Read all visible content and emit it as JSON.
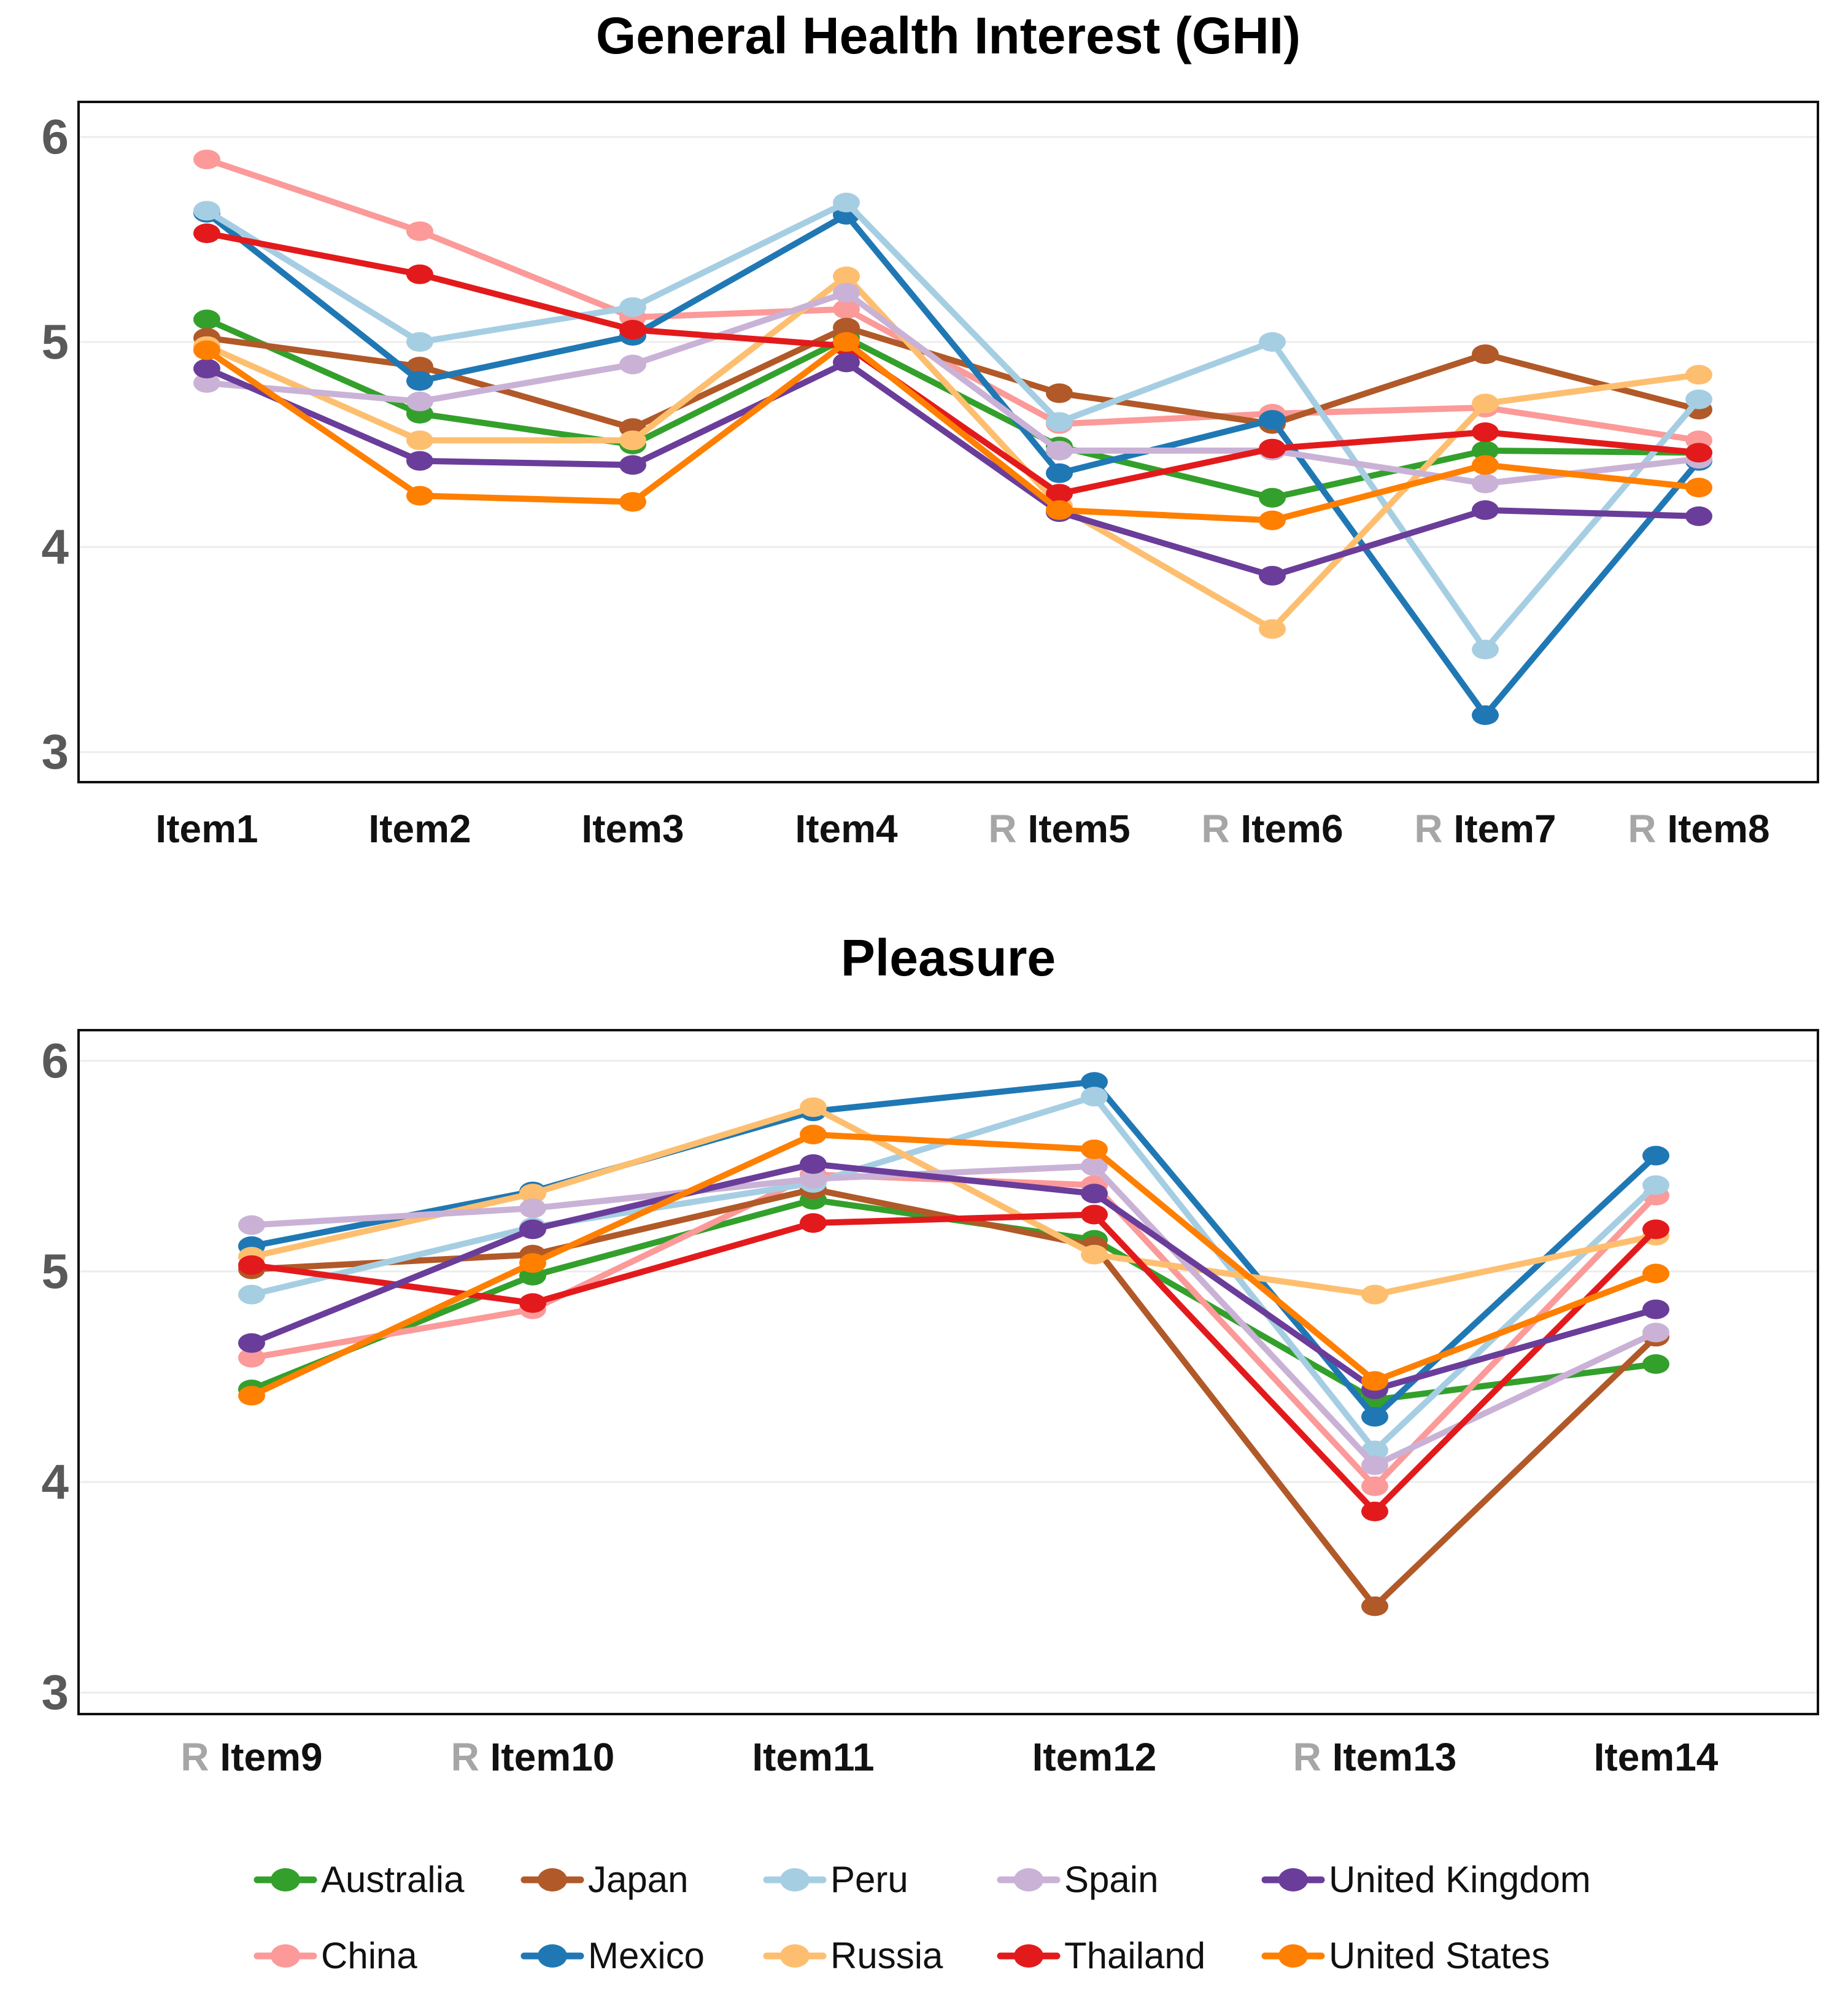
{
  "figure": {
    "reversed_prefix": "R",
    "colors": {
      "Australia": "#33a02c",
      "China": "#fb9a99",
      "Japan": "#b15928",
      "Mexico": "#1f78b4",
      "Peru": "#a6cee3",
      "Russia": "#fdbf6f",
      "Spain": "#cab2d6",
      "Thailand": "#e31a1c",
      "United Kingdom": "#6a3d9a",
      "United States": "#ff7f00"
    },
    "legend": {
      "columns": [
        [
          "Australia",
          "China"
        ],
        [
          "Japan",
          "Mexico"
        ],
        [
          "Peru",
          "Russia"
        ],
        [
          "Spain",
          "Thailand"
        ],
        [
          "United Kingdom",
          "United States"
        ]
      ]
    }
  },
  "chart_data": [
    {
      "type": "line",
      "title": "General Health Interest (GHI)",
      "ylim": [
        2.86,
        6.16
      ],
      "yticks": [
        6,
        5,
        4,
        3
      ],
      "grid": true,
      "legend_position": "bottom",
      "categories": [
        {
          "label": "Item1",
          "reversed": false
        },
        {
          "label": "Item2",
          "reversed": false
        },
        {
          "label": "Item3",
          "reversed": false
        },
        {
          "label": "Item4",
          "reversed": false
        },
        {
          "label": "Item5",
          "reversed": true
        },
        {
          "label": "Item6",
          "reversed": true
        },
        {
          "label": "Item7",
          "reversed": true
        },
        {
          "label": "Item8",
          "reversed": true
        }
      ],
      "series": [
        {
          "name": "Australia",
          "values": [
            5.11,
            4.65,
            4.5,
            5.02,
            4.49,
            4.24,
            4.47,
            4.46
          ]
        },
        {
          "name": "China",
          "values": [
            5.89,
            5.54,
            5.12,
            5.16,
            4.6,
            4.65,
            4.68,
            4.52
          ]
        },
        {
          "name": "Japan",
          "values": [
            5.02,
            4.88,
            4.58,
            5.07,
            4.75,
            4.6,
            4.94,
            4.67
          ]
        },
        {
          "name": "Mexico",
          "values": [
            5.63,
            4.81,
            5.03,
            5.62,
            4.36,
            4.62,
            3.18,
            4.42
          ]
        },
        {
          "name": "Peru",
          "values": [
            5.64,
            5.0,
            5.17,
            5.68,
            4.61,
            5.0,
            3.5,
            4.72
          ]
        },
        {
          "name": "Russia",
          "values": [
            4.98,
            4.52,
            4.52,
            5.32,
            4.2,
            3.6,
            4.7,
            4.84
          ]
        },
        {
          "name": "Spain",
          "values": [
            4.8,
            4.71,
            4.89,
            5.24,
            4.47,
            4.47,
            4.31,
            4.43
          ]
        },
        {
          "name": "Thailand",
          "values": [
            5.53,
            5.33,
            5.06,
            4.98,
            4.26,
            4.48,
            4.56,
            4.46
          ]
        },
        {
          "name": "United Kingdom",
          "values": [
            4.87,
            4.42,
            4.4,
            4.9,
            4.17,
            3.86,
            4.18,
            4.15
          ]
        },
        {
          "name": "United States",
          "values": [
            4.96,
            4.25,
            4.22,
            5.0,
            4.18,
            4.13,
            4.4,
            4.29
          ]
        }
      ]
    },
    {
      "type": "line",
      "title": "Pleasure",
      "ylim": [
        2.9,
        6.14
      ],
      "yticks": [
        6,
        5,
        4,
        3
      ],
      "grid": true,
      "legend_position": "bottom",
      "categories": [
        {
          "label": "Item9",
          "reversed": true
        },
        {
          "label": "Item10",
          "reversed": true
        },
        {
          "label": "Item11",
          "reversed": false
        },
        {
          "label": "Item12",
          "reversed": false
        },
        {
          "label": "Item13",
          "reversed": true
        },
        {
          "label": "Item14",
          "reversed": false
        }
      ],
      "series": [
        {
          "name": "Australia",
          "values": [
            4.44,
            4.98,
            5.34,
            5.15,
            4.39,
            4.56
          ]
        },
        {
          "name": "China",
          "values": [
            4.59,
            4.82,
            5.46,
            5.41,
            3.98,
            5.36
          ]
        },
        {
          "name": "Japan",
          "values": [
            5.01,
            5.08,
            5.39,
            5.12,
            3.41,
            4.69
          ]
        },
        {
          "name": "Mexico",
          "values": [
            5.12,
            5.38,
            5.76,
            5.9,
            4.31,
            5.55
          ]
        },
        {
          "name": "Peru",
          "values": [
            4.89,
            5.21,
            5.42,
            5.83,
            4.15,
            5.41
          ]
        },
        {
          "name": "Russia",
          "values": [
            5.07,
            5.37,
            5.78,
            5.08,
            4.89,
            5.17
          ]
        },
        {
          "name": "Spain",
          "values": [
            5.22,
            5.3,
            5.44,
            5.5,
            4.08,
            4.71
          ]
        },
        {
          "name": "Thailand",
          "values": [
            5.03,
            4.85,
            5.23,
            5.27,
            3.86,
            5.2
          ]
        },
        {
          "name": "United Kingdom",
          "values": [
            4.66,
            5.2,
            5.51,
            5.37,
            4.44,
            4.82
          ]
        },
        {
          "name": "United States",
          "values": [
            4.41,
            5.04,
            5.65,
            5.58,
            4.48,
            4.99
          ]
        }
      ]
    }
  ]
}
